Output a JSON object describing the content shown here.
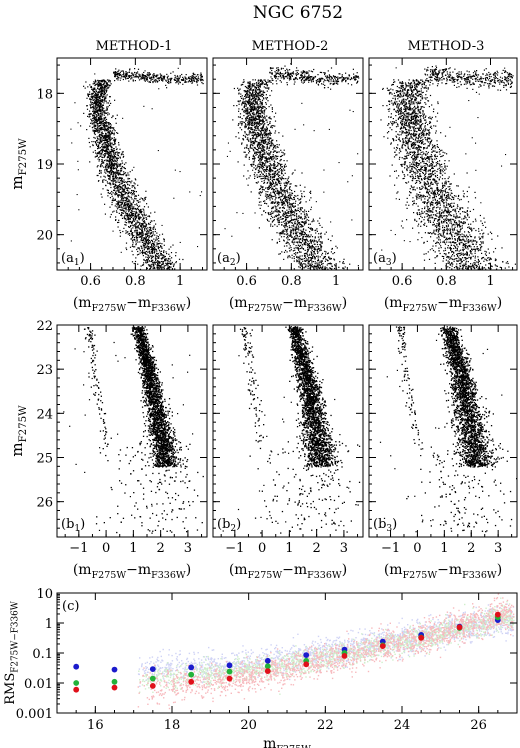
{
  "figure": {
    "title": "NGC 6752",
    "method_labels": [
      "METHOD-1",
      "METHOD-2",
      "METHOD-3"
    ]
  },
  "chart_data": [
    {
      "type": "scatter",
      "row": "a",
      "panels": [
        {
          "label_base": "a",
          "label_sub": "1"
        },
        {
          "label_base": "a",
          "label_sub": "2"
        },
        {
          "label_base": "a",
          "label_sub": "3"
        }
      ],
      "xlabel": {
        "base": "(m",
        "sub1": "F275W",
        "mid": "−m",
        "sub2": "F336W",
        "end": ")"
      },
      "ylabel": {
        "base": "m",
        "sub": "F275W"
      },
      "xlim": [
        0.45,
        1.12
      ],
      "ylim": [
        20.5,
        17.5
      ],
      "xticks": [
        0.6,
        0.8,
        1
      ],
      "xtick_labels": [
        "0.6",
        "0.8",
        "1"
      ],
      "yticks": [
        18,
        19,
        20
      ],
      "ytick_labels": [
        "18",
        "19",
        "20"
      ],
      "sequence_ridge": [
        [
          0.7,
          17.72
        ],
        [
          0.66,
          17.8
        ],
        [
          0.64,
          17.9
        ],
        [
          0.63,
          18.0
        ],
        [
          0.63,
          18.2
        ],
        [
          0.64,
          18.4
        ],
        [
          0.655,
          18.6
        ],
        [
          0.67,
          18.8
        ],
        [
          0.69,
          19.0
        ],
        [
          0.715,
          19.2
        ],
        [
          0.74,
          19.4
        ],
        [
          0.77,
          19.6
        ],
        [
          0.8,
          19.8
        ],
        [
          0.83,
          20.0
        ],
        [
          0.865,
          20.2
        ],
        [
          0.9,
          20.4
        ],
        [
          0.92,
          20.5
        ]
      ],
      "subgiant_branch": [
        [
          0.7,
          17.72
        ],
        [
          0.8,
          17.74
        ],
        [
          0.9,
          17.78
        ],
        [
          1.0,
          17.8
        ],
        [
          1.08,
          17.78
        ]
      ],
      "sequence_halfwidth": [
        0.022,
        0.03,
        0.04
      ]
    },
    {
      "type": "scatter",
      "row": "b",
      "panels": [
        {
          "label_base": "b",
          "label_sub": "1"
        },
        {
          "label_base": "b",
          "label_sub": "2"
        },
        {
          "label_base": "b",
          "label_sub": "3"
        }
      ],
      "xlabel": {
        "base": "(m",
        "sub1": "F275W",
        "mid": "−m",
        "sub2": "F336W",
        "end": ")"
      },
      "ylabel": {
        "base": "m",
        "sub": "F275W"
      },
      "xlim": [
        -1.8,
        3.7
      ],
      "ylim": [
        26.8,
        22.0
      ],
      "xticks": [
        -1,
        0,
        1,
        2,
        3
      ],
      "xtick_labels": [
        "−1",
        "0",
        "1",
        "2",
        "3"
      ],
      "yticks": [
        22,
        23,
        24,
        25,
        26
      ],
      "ytick_labels": [
        "22",
        "23",
        "24",
        "25",
        "26"
      ],
      "main_sequence_ridge": [
        [
          1.15,
          22.0
        ],
        [
          1.35,
          22.5
        ],
        [
          1.55,
          23.0
        ],
        [
          1.7,
          23.5
        ],
        [
          1.85,
          24.0
        ],
        [
          2.0,
          24.5
        ],
        [
          2.15,
          25.0
        ]
      ],
      "white_dwarf_ridge": [
        [
          -0.65,
          22.0
        ],
        [
          -0.55,
          22.5
        ],
        [
          -0.45,
          23.0
        ],
        [
          -0.35,
          23.5
        ],
        [
          -0.2,
          24.0
        ],
        [
          -0.05,
          24.5
        ],
        [
          0.1,
          25.0
        ]
      ]
    },
    {
      "type": "scatter",
      "row": "c",
      "panel_label": "c",
      "xlabel": {
        "base": "m",
        "sub": "F275W"
      },
      "ylabel": {
        "base": "RMS",
        "sub": "F275W−F336W"
      },
      "xlim": [
        15,
        27
      ],
      "ylim": [
        0.001,
        10
      ],
      "yscale": "log",
      "xticks": [
        16,
        18,
        20,
        22,
        24,
        26
      ],
      "xtick_labels": [
        "16",
        "18",
        "20",
        "22",
        "24",
        "26"
      ],
      "yticks": [
        0.001,
        0.01,
        0.1,
        1,
        10
      ],
      "ytick_labels": [
        "0.001",
        "0.01",
        "0.1",
        "1",
        "10"
      ],
      "colors": {
        "red": "#e0101a",
        "green": "#22b33a",
        "blue": "#1b1bcc",
        "red_cloud": "#f7b9bd",
        "green_cloud": "#cfeecb",
        "blue_cloud": "#cfd3f5"
      },
      "series": [
        {
          "color": "blue",
          "x": [
            15.5,
            16.5,
            17.5,
            18.5,
            19.5,
            20.5,
            21.5,
            22.5,
            23.5,
            24.5,
            25.5,
            26.5
          ],
          "y": [
            0.035,
            0.028,
            0.029,
            0.033,
            0.039,
            0.055,
            0.085,
            0.13,
            0.24,
            0.4,
            0.75,
            1.25
          ]
        },
        {
          "color": "green",
          "x": [
            15.5,
            16.5,
            17.5,
            18.5,
            19.5,
            20.5,
            21.5,
            22.5,
            23.5,
            24.5,
            25.5,
            26.5
          ],
          "y": [
            0.01,
            0.011,
            0.014,
            0.019,
            0.024,
            0.036,
            0.055,
            0.1,
            0.18,
            0.33,
            0.68,
            1.55
          ]
        },
        {
          "color": "red",
          "x": [
            15.5,
            16.5,
            17.5,
            18.5,
            19.5,
            20.5,
            21.5,
            22.5,
            23.5,
            24.5,
            25.5,
            26.5
          ],
          "y": [
            0.006,
            0.007,
            0.008,
            0.011,
            0.014,
            0.025,
            0.042,
            0.08,
            0.17,
            0.32,
            0.72,
            1.9
          ]
        }
      ]
    }
  ]
}
